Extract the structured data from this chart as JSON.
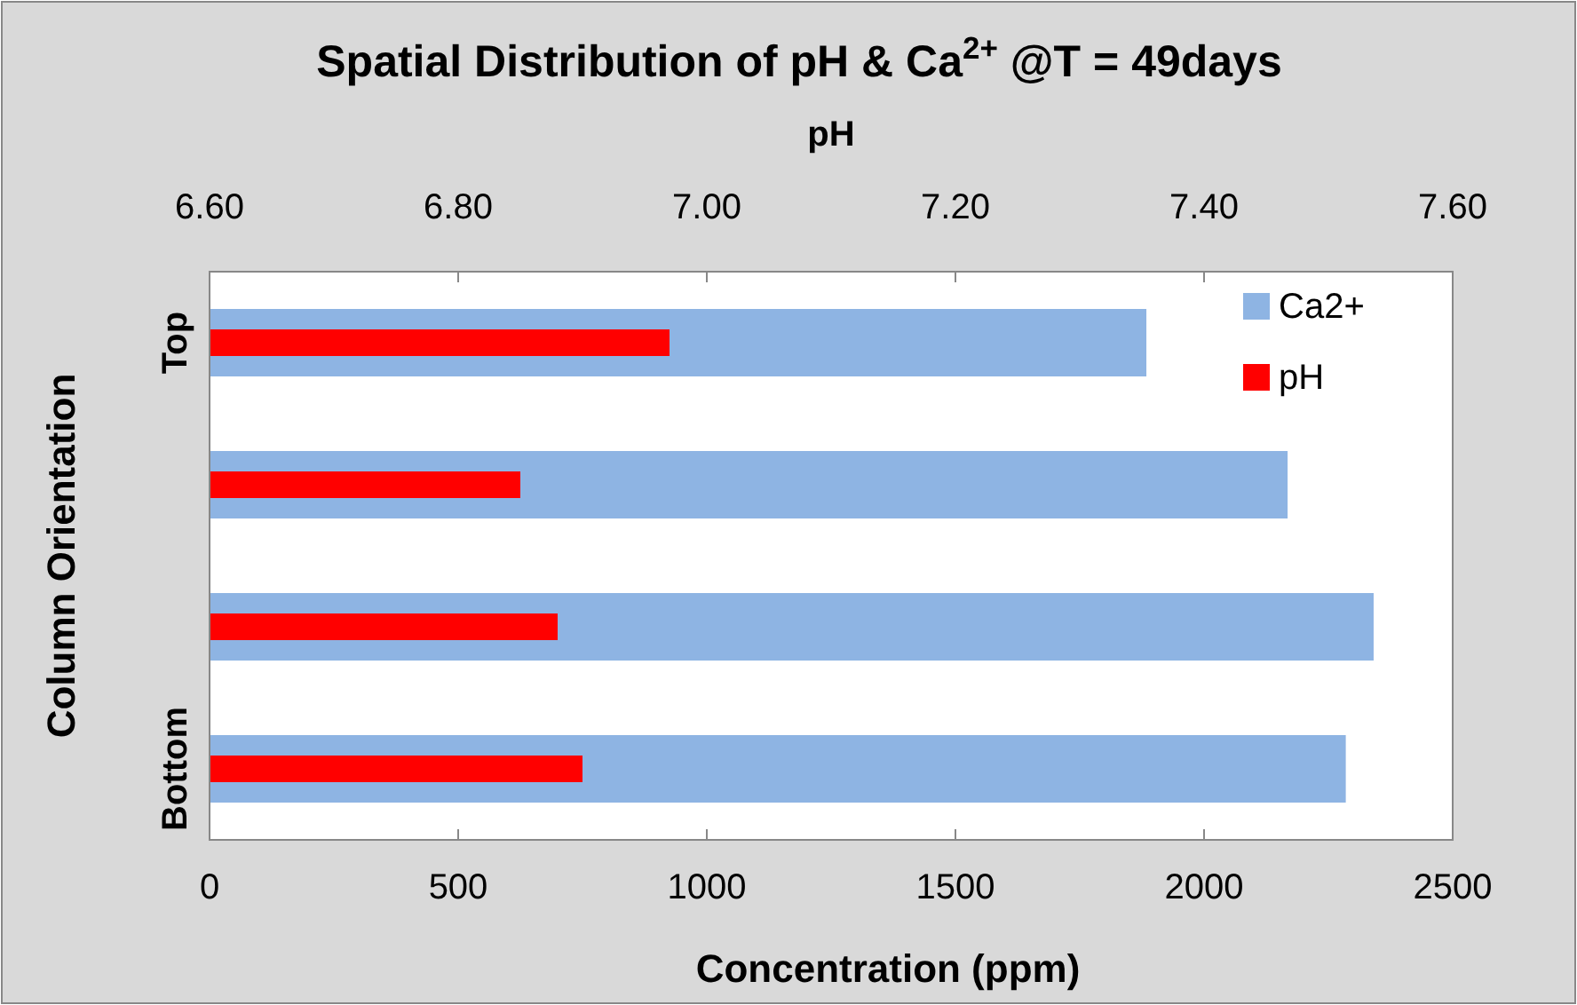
{
  "chart_data": {
    "type": "bar",
    "orientation": "horizontal",
    "title": "Spatial Distribution of pH & Ca$^{2+}$ @T = 49days",
    "xlabel": "Concentration  (ppm)",
    "x2label": "pH",
    "ylabel": "Column Orientation",
    "categories": [
      "Top",
      null,
      null,
      "Bottom"
    ],
    "series": [
      {
        "name": "Ca2+",
        "color": "#8eb4e3",
        "values": [
          1884,
          2168,
          2341,
          2285
        ]
      },
      {
        "name": "pH",
        "color": "#ff0000",
        "axis": "x2",
        "values": [
          6.97,
          6.85,
          6.88,
          6.9
        ]
      }
    ],
    "xlim": [
      0,
      2500
    ],
    "xticks": [
      0,
      500,
      1000,
      1500,
      2000,
      2500
    ],
    "x2lim": [
      6.6,
      7.6
    ],
    "x2ticks": [
      {
        "value": 6.6,
        "label": "6.60"
      },
      {
        "value": 6.8,
        "label": "6.80"
      },
      {
        "value": 7.0,
        "label": "7.00"
      },
      {
        "value": 7.2,
        "label": "7.20"
      },
      {
        "value": 7.4,
        "label": "7.40"
      },
      {
        "value": 7.6,
        "label": "7.60"
      }
    ],
    "legend": "top right"
  }
}
